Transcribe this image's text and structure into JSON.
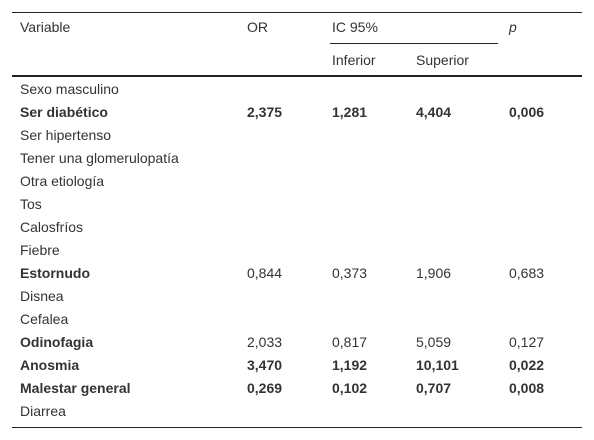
{
  "table": {
    "header": {
      "variable": "Variable",
      "or": "OR",
      "ci": "IC 95%",
      "lower": "Inferior",
      "upper": "Superior",
      "p": "p"
    },
    "rows": [
      {
        "variable": "Sexo masculino"
      },
      {
        "variable": "Ser diabético",
        "values": [
          "2,375",
          "1,281",
          "4,404",
          "0,006"
        ],
        "bold": "all"
      },
      {
        "variable": "Ser hipertenso"
      },
      {
        "variable": "Tener una glomerulopatía"
      },
      {
        "variable": "Otra etiología"
      },
      {
        "variable": "Tos"
      },
      {
        "variable": "Calosfríos"
      },
      {
        "variable": "Fiebre"
      },
      {
        "variable": "Estornudo",
        "values": [
          "0,844",
          "0,373",
          "1,906",
          "0,683"
        ],
        "bold": "label"
      },
      {
        "variable": "Disnea"
      },
      {
        "variable": "Cefalea"
      },
      {
        "variable": "Odinofagia",
        "values": [
          "2,033",
          "0,817",
          "5,059",
          "0,127"
        ],
        "bold": "label"
      },
      {
        "variable": "Anosmia",
        "values": [
          "3,470",
          "1,192",
          "10,101",
          "0,022"
        ],
        "bold": "all"
      },
      {
        "variable": "Malestar general",
        "values": [
          "0,269",
          "0,102",
          "0,707",
          "0,008"
        ],
        "bold": "all"
      },
      {
        "variable": "Diarrea"
      }
    ]
  }
}
